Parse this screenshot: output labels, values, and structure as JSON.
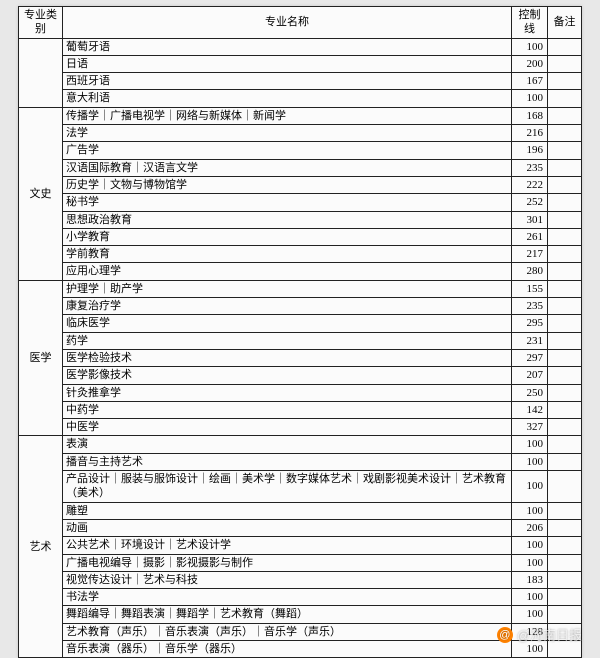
{
  "headers": {
    "category": "专业类别",
    "name": "专业名称",
    "score": "控制线",
    "note": "备注"
  },
  "groups": [
    {
      "category": "",
      "rows": [
        {
          "name": "葡萄牙语",
          "score": 100
        },
        {
          "name": "日语",
          "score": 200
        },
        {
          "name": "西班牙语",
          "score": 167
        },
        {
          "name": "意大利语",
          "score": 100
        }
      ]
    },
    {
      "category": "文史",
      "rows": [
        {
          "name": "传播学｜广播电视学｜网络与新媒体｜新闻学",
          "score": 168
        },
        {
          "name": "法学",
          "score": 216
        },
        {
          "name": "广告学",
          "score": 196
        },
        {
          "name": "汉语国际教育｜汉语言文学",
          "score": 235
        },
        {
          "name": "历史学｜文物与博物馆学",
          "score": 222
        },
        {
          "name": "秘书学",
          "score": 252
        },
        {
          "name": "思想政治教育",
          "score": 301
        },
        {
          "name": "小学教育",
          "score": 261
        },
        {
          "name": "学前教育",
          "score": 217
        },
        {
          "name": "应用心理学",
          "score": 280
        }
      ]
    },
    {
      "category": "医学",
      "rows": [
        {
          "name": "护理学｜助产学",
          "score": 155
        },
        {
          "name": "康复治疗学",
          "score": 235
        },
        {
          "name": "临床医学",
          "score": 295
        },
        {
          "name": "药学",
          "score": 231
        },
        {
          "name": "医学检验技术",
          "score": 297
        },
        {
          "name": "医学影像技术",
          "score": 207
        },
        {
          "name": "针灸推拿学",
          "score": 250
        },
        {
          "name": "中药学",
          "score": 142
        },
        {
          "name": "中医学",
          "score": 327
        }
      ]
    },
    {
      "category": "艺术",
      "rows": [
        {
          "name": "表演",
          "score": 100
        },
        {
          "name": "播音与主持艺术",
          "score": 100
        },
        {
          "name": "产品设计｜服装与服饰设计｜绘画｜美术学｜数字媒体艺术｜戏剧影视美术设计｜艺术教育（美术）",
          "score": 100
        },
        {
          "name": "雕塑",
          "score": 100
        },
        {
          "name": "动画",
          "score": 206
        },
        {
          "name": "公共艺术｜环境设计｜艺术设计学",
          "score": 100
        },
        {
          "name": "广播电视编导｜摄影｜影视摄影与制作",
          "score": 100
        },
        {
          "name": "视觉传达设计｜艺术与科技",
          "score": 183
        },
        {
          "name": "书法学",
          "score": 100
        },
        {
          "name": "舞蹈编导｜舞蹈表演｜舞蹈学｜艺术教育（舞蹈）",
          "score": 100
        },
        {
          "name": "艺术教育（声乐）｜音乐表演（声乐）｜音乐学（声乐）",
          "score": 128
        },
        {
          "name": "音乐表演（器乐）｜音乐学（器乐）",
          "score": 100
        }
      ]
    }
  ],
  "watermark": "@河南日报"
}
